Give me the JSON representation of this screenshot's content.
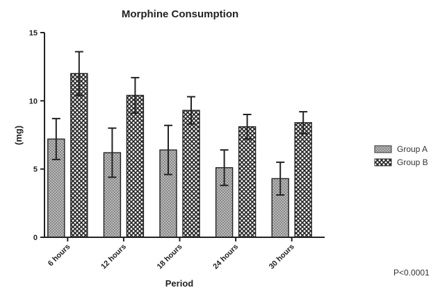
{
  "chart_data": {
    "type": "bar",
    "title": "Morphine Consumption",
    "xlabel": "Period",
    "ylabel": "(mg)",
    "ylim": [
      0,
      15
    ],
    "yticks": [
      0,
      5,
      10,
      15
    ],
    "categories": [
      "6 hours",
      "12 hours",
      "18 hours",
      "24 hours",
      "30 hours"
    ],
    "series": [
      {
        "name": "Group A",
        "values": [
          7.2,
          6.2,
          6.4,
          5.1,
          4.3
        ],
        "errors": [
          1.5,
          1.8,
          1.8,
          1.3,
          1.2
        ]
      },
      {
        "name": "Group B",
        "values": [
          12.0,
          10.4,
          9.3,
          8.1,
          8.4
        ],
        "errors": [
          1.6,
          1.3,
          1.0,
          0.9,
          0.8
        ]
      }
    ],
    "legend_position": "right",
    "grid": false,
    "annotation": "P<0.0001"
  }
}
